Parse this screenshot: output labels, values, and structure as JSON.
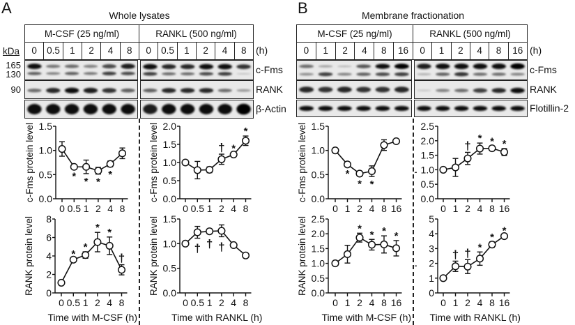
{
  "panels": [
    {
      "letter": "A",
      "title": "Whole lysates",
      "kda_label": "kDa",
      "unit_label": "(h)",
      "groups": [
        {
          "label": "M-CSF (25 ng/ml)",
          "lanes": [
            "0",
            "0.5",
            "1",
            "2",
            "4",
            "8"
          ]
        },
        {
          "label": "RANKL (500 ng/ml)",
          "lanes": [
            "0",
            "0.5",
            "1",
            "2",
            "4",
            "8"
          ]
        }
      ],
      "markers": [
        "165",
        "130",
        "90"
      ],
      "blot_rows": [
        "c-Fms",
        "RANK",
        "β-Actin"
      ]
    },
    {
      "letter": "B",
      "title": "Membrane fractionation",
      "unit_label": "(h)",
      "groups": [
        {
          "label": "M-CSF (25 ng/ml)",
          "lanes": [
            "0",
            "1",
            "2",
            "4",
            "8",
            "16"
          ]
        },
        {
          "label": "RANKL (500 ng/ml)",
          "lanes": [
            "0",
            "1",
            "2",
            "4",
            "8",
            "16"
          ]
        }
      ],
      "blot_rows": [
        "c-Fms",
        "RANK",
        "Flotillin-2"
      ]
    }
  ],
  "chart_data": [
    {
      "id": "A-mcsf-cfms",
      "type": "line",
      "title": "",
      "xlabel": "",
      "ylabel": "c-Fms protein level",
      "categories": [
        "0",
        "0.5",
        "1",
        "2",
        "4",
        "8"
      ],
      "values": [
        1.03,
        0.66,
        0.66,
        0.58,
        0.72,
        0.94
      ],
      "errors": [
        0.15,
        0.03,
        0.14,
        0.07,
        0.06,
        0.11
      ],
      "marks": [
        "",
        "*",
        "*",
        "*",
        "*",
        ""
      ],
      "mark_pos": "below",
      "ylim": [
        0,
        1.5
      ],
      "yticks": [
        "0.0",
        "0.5",
        "1.0",
        "1.5"
      ],
      "grid": false
    },
    {
      "id": "A-rankl-cfms",
      "type": "line",
      "title": "",
      "xlabel": "",
      "ylabel": "c-Fms protein level",
      "categories": [
        "0",
        "0.5",
        "1",
        "2",
        "4",
        "8"
      ],
      "values": [
        1.0,
        0.79,
        0.8,
        1.09,
        1.22,
        1.6
      ],
      "errors": [
        0.02,
        0.24,
        0.08,
        0.14,
        0.04,
        0.13
      ],
      "marks": [
        "",
        "",
        "",
        "†",
        "*",
        "*"
      ],
      "mark_pos": "above",
      "ylim": [
        0,
        2.0
      ],
      "yticks": [
        "0.0",
        "0.5",
        "1.0",
        "1.5",
        "2.0"
      ],
      "grid": false
    },
    {
      "id": "A-mcsf-rank",
      "type": "line",
      "title": "",
      "xlabel": "Time with M-CSF (h)",
      "ylabel": "RANK protein level",
      "categories": [
        "0",
        "0.5",
        "1",
        "2",
        "4",
        "8"
      ],
      "values": [
        1.1,
        3.6,
        4.1,
        5.5,
        5.1,
        2.5
      ],
      "errors": [
        0.1,
        0.1,
        0.35,
        1.05,
        0.95,
        0.55
      ],
      "marks": [
        "",
        "*",
        "*",
        "*",
        "*",
        "†"
      ],
      "mark_pos": "above",
      "ylim": [
        0,
        8
      ],
      "yticks": [
        "0",
        "2",
        "4",
        "6",
        "8"
      ],
      "grid": false
    },
    {
      "id": "A-rankl-rank",
      "type": "line",
      "title": "",
      "xlabel": "Time with RANKL (h)",
      "ylabel": "RANK protein level",
      "categories": [
        "0",
        "0.5",
        "1",
        "2",
        "4",
        "8"
      ],
      "values": [
        1.0,
        1.23,
        1.25,
        1.26,
        0.97,
        0.76
      ],
      "errors": [
        0.03,
        0.12,
        0.05,
        0.12,
        0.02,
        0.02
      ],
      "marks": [
        "",
        "†",
        "†",
        "†",
        "",
        ""
      ],
      "mark_pos": "below",
      "ylim": [
        0,
        1.5
      ],
      "yticks": [
        "0.0",
        "0.5",
        "1.0",
        "1.5"
      ],
      "grid": false
    },
    {
      "id": "B-mcsf-cfms",
      "type": "line",
      "title": "",
      "xlabel": "",
      "ylabel": "c-Fms protein level",
      "categories": [
        "0",
        "1",
        "2",
        "4",
        "8",
        "16"
      ],
      "values": [
        1.0,
        0.71,
        0.52,
        0.57,
        1.11,
        1.19
      ],
      "errors": [
        0.01,
        0.03,
        0.05,
        0.11,
        0.11,
        0.04
      ],
      "marks": [
        "",
        "*",
        "*",
        "*",
        "",
        ""
      ],
      "mark_pos": "below",
      "ylim": [
        0,
        1.5
      ],
      "yticks": [
        "0.0",
        "0.5",
        "1.0",
        "1.5"
      ],
      "grid": false
    },
    {
      "id": "B-rankl-cfms",
      "type": "line",
      "title": "",
      "xlabel": "",
      "ylabel": "c-Fms protein level",
      "categories": [
        "0",
        "1",
        "2",
        "4",
        "8",
        "16"
      ],
      "values": [
        1.0,
        1.08,
        1.39,
        1.73,
        1.74,
        1.61
      ],
      "errors": [
        0.01,
        0.31,
        0.21,
        0.19,
        0.08,
        0.12
      ],
      "marks": [
        "",
        "",
        "†",
        "*",
        "*",
        "*"
      ],
      "mark_pos": "above",
      "ylim": [
        0,
        2.5
      ],
      "yticks": [
        "0.0",
        "0.5",
        "1.0",
        "1.5",
        "2.0",
        "2.5"
      ],
      "grid": false
    },
    {
      "id": "B-mcsf-rank",
      "type": "line",
      "title": "",
      "xlabel": "Time with M-CSF (h)",
      "ylabel": "RANK protein level",
      "categories": [
        "0",
        "1",
        "2",
        "4",
        "8",
        "16"
      ],
      "values": [
        1.0,
        1.31,
        1.87,
        1.63,
        1.64,
        1.51
      ],
      "errors": [
        0.01,
        0.3,
        0.15,
        0.18,
        0.29,
        0.26
      ],
      "marks": [
        "",
        "",
        "*",
        "*",
        "*",
        "*"
      ],
      "mark_pos": "above",
      "ylim": [
        0,
        2.5
      ],
      "yticks": [
        "0.0",
        "0.5",
        "1.0",
        "1.5",
        "2.0",
        "2.5"
      ],
      "grid": false
    },
    {
      "id": "B-rankl-rank",
      "type": "line",
      "title": "",
      "xlabel": "Time with RANKL (h)",
      "ylabel": "RANK protein level",
      "categories": [
        "0",
        "1",
        "2",
        "4",
        "8",
        "16"
      ],
      "values": [
        1.0,
        1.8,
        1.78,
        2.32,
        3.27,
        3.84
      ],
      "errors": [
        0.02,
        0.35,
        0.47,
        0.45,
        0.18,
        0.04
      ],
      "marks": [
        "",
        "†",
        "†",
        "*",
        "*",
        "*"
      ],
      "mark_pos": "above",
      "ylim": [
        0,
        5
      ],
      "yticks": [
        "0",
        "1",
        "2",
        "3",
        "4",
        "5"
      ],
      "grid": false
    }
  ]
}
